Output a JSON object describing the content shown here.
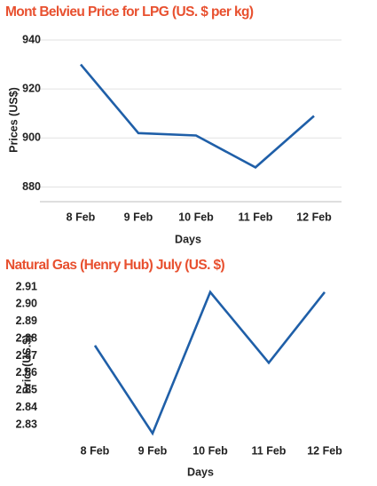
{
  "chart_data": [
    {
      "type": "line",
      "title": "Mont Belvieu Price for LPG  (US. $ per kg)",
      "xlabel": "Days",
      "ylabel": "Prices (US$)",
      "categories": [
        "8 Feb",
        "9 Feb",
        "10 Feb",
        "11 Feb",
        "12 Feb"
      ],
      "series": [
        {
          "values": [
            930,
            902,
            901,
            888,
            909
          ]
        }
      ],
      "yticks": [
        "880",
        "900",
        "920",
        "940"
      ],
      "ylim": [
        874,
        940
      ],
      "grid": true,
      "color": "#1f5fa8"
    },
    {
      "type": "line",
      "title": "Natural Gas (Henry Hub) July  (US. $)",
      "xlabel": "Days",
      "ylabel": "Price(US.$)",
      "categories": [
        "8 Feb",
        "9 Feb",
        "10 Feb",
        "11 Feb",
        "12 Feb"
      ],
      "series": [
        {
          "values": [
            2.876,
            2.825,
            2.907,
            2.866,
            2.907
          ]
        }
      ],
      "yticks": [
        "2.83",
        "2.84",
        "2.85",
        "2.86",
        "2.87",
        "2.88",
        "2.89",
        "2.90",
        "2.91"
      ],
      "ylim": [
        2.83,
        2.91
      ],
      "grid": false,
      "color": "#1f5fa8"
    }
  ]
}
